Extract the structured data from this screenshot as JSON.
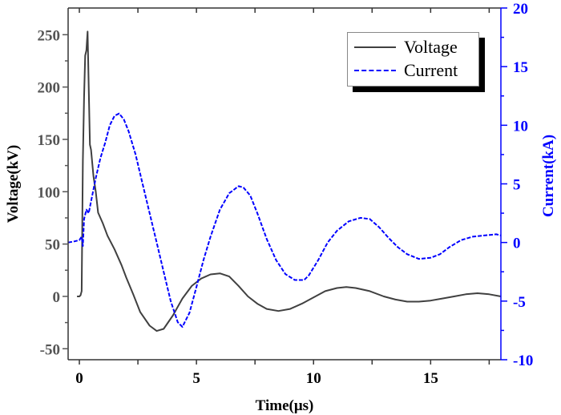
{
  "chart_data": {
    "type": "line",
    "xlabel": "Time(μs)",
    "ylabel": "Voltage(kV)",
    "y2label": "Current(kA)",
    "xlim": [
      -0.48,
      18
    ],
    "ylim": [
      -60.5,
      275.5
    ],
    "y2lim": [
      -10,
      20
    ],
    "xticks": [
      0,
      5,
      10,
      15
    ],
    "yticks": [
      -50,
      0,
      50,
      100,
      150,
      200,
      250
    ],
    "y2ticks": [
      -10,
      -5,
      0,
      5,
      10,
      15,
      20
    ],
    "legend_position": "top-right",
    "series": [
      {
        "name": "Voltage",
        "axis": "left",
        "color": "#404040",
        "style": "solid",
        "x": [
          -0.1,
          0.0,
          0.05,
          0.1,
          0.15,
          0.2,
          0.25,
          0.3,
          0.35,
          0.4,
          0.45,
          0.5,
          0.6,
          0.7,
          0.8,
          1.0,
          1.2,
          1.5,
          1.8,
          2.0,
          2.3,
          2.6,
          3.0,
          3.3,
          3.6,
          4.0,
          4.4,
          4.8,
          5.2,
          5.6,
          6.0,
          6.4,
          6.8,
          7.2,
          7.6,
          8.0,
          8.5,
          9.0,
          9.5,
          10.0,
          10.5,
          11.0,
          11.4,
          11.8,
          12.4,
          13.0,
          13.5,
          14.0,
          14.5,
          15.0,
          15.5,
          16.0,
          16.5,
          17.0,
          17.5,
          18.0
        ],
        "y": [
          0,
          0,
          1,
          5,
          130,
          190,
          230,
          235,
          253,
          200,
          145,
          140,
          115,
          100,
          80,
          70,
          58,
          45,
          30,
          18,
          2,
          -15,
          -28,
          -33,
          -31,
          -18,
          -2,
          10,
          17,
          21,
          22,
          19,
          10,
          0,
          -7,
          -12,
          -14,
          -12,
          -7,
          -1,
          5,
          8,
          9,
          8,
          5,
          0,
          -3,
          -5,
          -5,
          -4,
          -2,
          0,
          2,
          3,
          2,
          0
        ]
      },
      {
        "name": "Current",
        "axis": "right",
        "color": "#0000ff",
        "style": "dashed",
        "x": [
          -0.48,
          -0.2,
          0.0,
          0.1,
          0.15,
          0.2,
          0.3,
          0.4,
          0.5,
          0.7,
          0.9,
          1.1,
          1.3,
          1.5,
          1.7,
          1.9,
          2.1,
          2.4,
          2.7,
          3.0,
          3.3,
          3.6,
          3.9,
          4.2,
          4.4,
          4.7,
          5.0,
          5.3,
          5.6,
          6.0,
          6.4,
          6.8,
          7.0,
          7.3,
          7.6,
          8.0,
          8.4,
          8.8,
          9.2,
          9.6,
          9.8,
          10.2,
          10.6,
          11.0,
          11.5,
          12.0,
          12.4,
          12.8,
          13.2,
          13.6,
          14.0,
          14.5,
          15.0,
          15.4,
          15.8,
          16.3,
          16.8,
          17.3,
          17.8,
          18.0
        ],
        "y": [
          0,
          0.1,
          0.2,
          0.5,
          -0.3,
          2.0,
          2.8,
          2.5,
          3.5,
          5.5,
          7.2,
          8.5,
          10.0,
          10.8,
          11.0,
          10.5,
          9.5,
          7.5,
          5.0,
          2.5,
          0,
          -2.5,
          -5,
          -6.8,
          -7.2,
          -6.0,
          -3.8,
          -1.5,
          0.5,
          2.8,
          4.2,
          4.8,
          4.7,
          4.0,
          2.5,
          0.3,
          -1.5,
          -2.7,
          -3.2,
          -3.2,
          -2.8,
          -1.5,
          0,
          1.0,
          1.8,
          2.1,
          2.0,
          1.3,
          0.4,
          -0.4,
          -1.0,
          -1.4,
          -1.3,
          -1.0,
          -0.4,
          0.2,
          0.5,
          0.6,
          0.7,
          0.6
        ]
      }
    ]
  }
}
